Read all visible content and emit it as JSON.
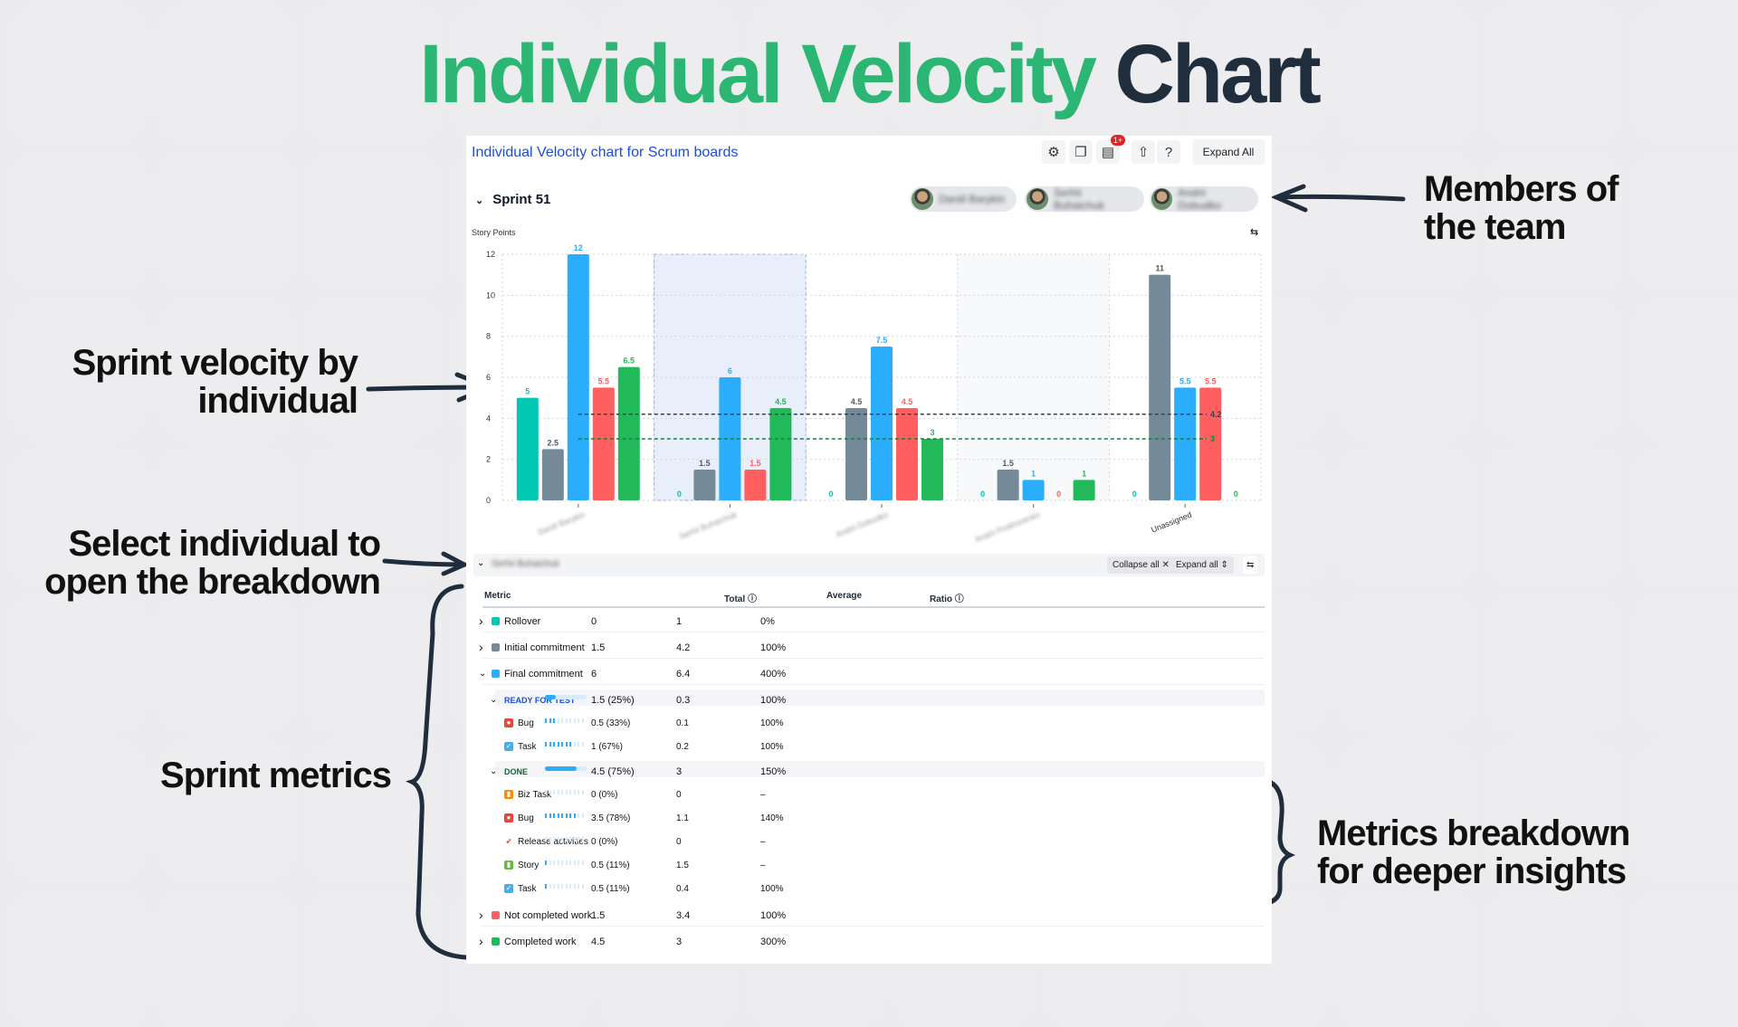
{
  "hero": {
    "title_green": "Individual Velocity",
    "title_dark": "Chart"
  },
  "annotations": {
    "members": "Members of the team",
    "velocity": "Sprint velocity by individual",
    "select": "Select individual to open the breakdown",
    "metrics": "Sprint metrics",
    "breakdown": "Metrics breakdown for deeper insights"
  },
  "card": {
    "title": "Individual Velocity chart for Scrum boards",
    "expand_all": "Expand All",
    "notif_badge": "1+",
    "icons": [
      "gear-icon",
      "copy-icon",
      "report-icon",
      "share-icon",
      "help-icon"
    ]
  },
  "sprint": {
    "name": "Sprint 51",
    "members": [
      "Daniil Barykin",
      "Serhii Buhaichuk",
      "Andrii Dobudko"
    ]
  },
  "colors": {
    "rollover": "#00c7b1",
    "initial": "#748a99",
    "final": "#2aaefc",
    "not_completed": "#ff5f5f",
    "completed": "#22b95a",
    "link": "#1d4ed8",
    "green": "#2bb673"
  },
  "chart_data": {
    "type": "bar",
    "ylabel": "Story Points",
    "ylim": [
      0,
      12
    ],
    "yticks": [
      0,
      2,
      4,
      6,
      8,
      10,
      12
    ],
    "grid": true,
    "categories": [
      "Daniil Barykin",
      "Serhii Buhaichuk",
      "Andrii Dobudko",
      "Andrii Prokhorenko",
      "Unassigned"
    ],
    "selected_category": "Serhii Buhaichuk",
    "series": [
      {
        "key": "rollover",
        "values": [
          5,
          0,
          0,
          0,
          0
        ]
      },
      {
        "key": "initial",
        "values": [
          2.5,
          1.5,
          4.5,
          1.5,
          11
        ]
      },
      {
        "key": "final",
        "values": [
          12,
          6,
          7.5,
          1,
          5.5
        ]
      },
      {
        "key": "not_completed",
        "values": [
          5.5,
          1.5,
          4.5,
          0,
          5.5
        ]
      },
      {
        "key": "completed",
        "values": [
          6.5,
          4.5,
          3,
          1,
          0
        ]
      }
    ],
    "average_lines": [
      {
        "key": "initial",
        "value": 4.2,
        "label": "4.2"
      },
      {
        "key": "completed",
        "value": 3,
        "label": "3"
      }
    ]
  },
  "breakdown": {
    "member": "Serhii Buhaichuk",
    "collapse_all": "Collapse all",
    "expand_all": "Expand all",
    "headers": {
      "metric": "Metric",
      "total": "Total",
      "average": "Average",
      "ratio": "Ratio"
    },
    "rows": [
      {
        "level": 0,
        "chev": "›",
        "color": "#00c7b1",
        "label": "Rollover",
        "total": "0",
        "avg": "1",
        "ratio": "0%"
      },
      {
        "level": 0,
        "chev": "›",
        "color": "#748a99",
        "label": "Initial commitment",
        "total": "1.5",
        "avg": "4.2",
        "ratio": "100%"
      },
      {
        "level": 0,
        "chev": "⌄",
        "color": "#2aaefc",
        "label": "Final commitment",
        "total": "6",
        "avg": "6.4",
        "ratio": "400%"
      },
      {
        "level": 1,
        "chev": "⌄",
        "status": "ready",
        "label": "READY FOR TEST",
        "progress": 25,
        "total": "1.5 (25%)",
        "avg": "0.3",
        "ratio": "100%"
      },
      {
        "level": 2,
        "icon": "bug-icon",
        "label": "Bug",
        "progress": 33,
        "total": "0.5 (33%)",
        "avg": "0.1",
        "ratio": "100%"
      },
      {
        "level": 2,
        "icon": "task-icon",
        "label": "Task",
        "progress": 67,
        "total": "1 (67%)",
        "avg": "0.2",
        "ratio": "100%"
      },
      {
        "level": 1,
        "chev": "⌄",
        "status": "done",
        "label": "DONE",
        "progress": 75,
        "total": "4.5 (75%)",
        "avg": "3",
        "ratio": "150%"
      },
      {
        "level": 2,
        "icon": "biz-task-icon",
        "label": "Biz Task",
        "progress": 0,
        "total": "0 (0%)",
        "avg": "0",
        "ratio": "–"
      },
      {
        "level": 2,
        "icon": "bug-icon",
        "label": "Bug",
        "progress": 78,
        "total": "3.5 (78%)",
        "avg": "1.1",
        "ratio": "140%"
      },
      {
        "level": 2,
        "icon": "release-icon",
        "label": "Release activities",
        "progress": 0,
        "total": "0 (0%)",
        "avg": "0",
        "ratio": "–"
      },
      {
        "level": 2,
        "icon": "story-icon",
        "label": "Story",
        "progress": 11,
        "total": "0.5 (11%)",
        "avg": "1.5",
        "ratio": "–"
      },
      {
        "level": 2,
        "icon": "task-icon",
        "label": "Task",
        "progress": 11,
        "total": "0.5 (11%)",
        "avg": "0.4",
        "ratio": "100%"
      },
      {
        "level": 0,
        "chev": "›",
        "color": "#ff5f5f",
        "label": "Not completed work",
        "total": "1.5",
        "avg": "3.4",
        "ratio": "100%"
      },
      {
        "level": 0,
        "chev": "›",
        "color": "#22b95a",
        "label": "Completed work",
        "total": "4.5",
        "avg": "3",
        "ratio": "300%"
      }
    ]
  }
}
